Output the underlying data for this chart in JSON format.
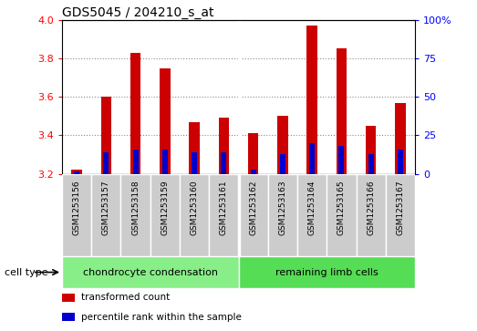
{
  "title": "GDS5045 / 204210_s_at",
  "samples": [
    "GSM1253156",
    "GSM1253157",
    "GSM1253158",
    "GSM1253159",
    "GSM1253160",
    "GSM1253161",
    "GSM1253162",
    "GSM1253163",
    "GSM1253164",
    "GSM1253165",
    "GSM1253166",
    "GSM1253167"
  ],
  "transformed_count": [
    3.22,
    3.6,
    3.83,
    3.75,
    3.47,
    3.49,
    3.41,
    3.5,
    3.97,
    3.85,
    3.45,
    3.57
  ],
  "percentile_rank": [
    1.5,
    14.0,
    16.0,
    16.0,
    14.0,
    14.0,
    3.0,
    13.0,
    20.0,
    18.0,
    13.0,
    16.0
  ],
  "ylim_left": [
    3.2,
    4.0
  ],
  "ylim_right": [
    0,
    100
  ],
  "yticks_left": [
    3.2,
    3.4,
    3.6,
    3.8,
    4.0
  ],
  "yticks_right": [
    0,
    25,
    50,
    75,
    100
  ],
  "ytick_labels_right": [
    "0",
    "25",
    "50",
    "75",
    "100%"
  ],
  "bar_color_red": "#cc0000",
  "bar_color_blue": "#0000cc",
  "bar_baseline": 3.2,
  "cell_type_groups": [
    {
      "label": "chondrocyte condensation",
      "start": 0,
      "end": 5,
      "color": "#88ee88"
    },
    {
      "label": "remaining limb cells",
      "start": 6,
      "end": 11,
      "color": "#55dd55"
    }
  ],
  "bg_color_samples": "#cccccc",
  "legend_items": [
    {
      "color": "#cc0000",
      "label": "transformed count"
    },
    {
      "color": "#0000cc",
      "label": "percentile rank within the sample"
    }
  ],
  "cell_type_label": "cell type"
}
